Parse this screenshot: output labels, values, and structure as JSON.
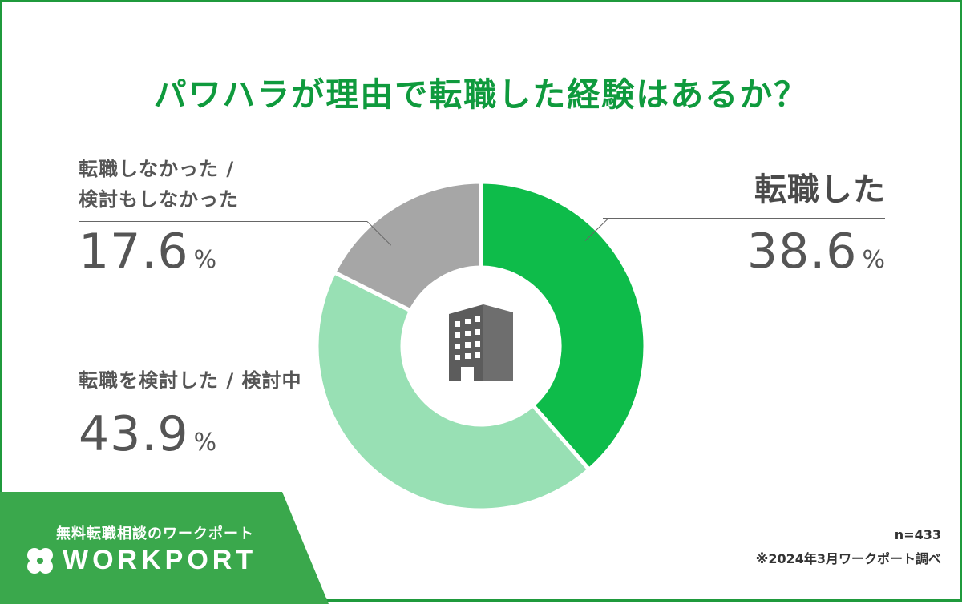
{
  "title": "パワハラが理由で転職した経験はあるか？",
  "chart_data": {
    "type": "pie",
    "donut": true,
    "categories": [
      "転職した",
      "転職を検討した / 検討中",
      "転職しなかった / 検討もしなかった"
    ],
    "values": [
      38.6,
      43.9,
      17.6
    ],
    "unit": "%",
    "colors": [
      "#0ebc4a",
      "#98e0b4",
      "#a6a6a6"
    ]
  },
  "labels": {
    "changed": {
      "cat": "転職した",
      "pct": "38.6",
      "unit": "%"
    },
    "considered": {
      "cat": "転職を検討した / 検討中",
      "pct": "43.9",
      "unit": "%"
    },
    "not": {
      "cat_line1": "転職しなかった /",
      "cat_line2": "検討もしなかった",
      "pct": "17.6",
      "unit": "%"
    }
  },
  "center_icon": "building-icon",
  "footer": {
    "tagline": "無料転職相談のワークポート",
    "logo_text": "WORKPORT",
    "n": "n=433",
    "source": "※2024年3月ワークポート調べ"
  },
  "colors": {
    "title": "#0f9a3d",
    "frame": "#1f9a3c",
    "logo_bg": "#3aa84c",
    "text": "#555555"
  }
}
